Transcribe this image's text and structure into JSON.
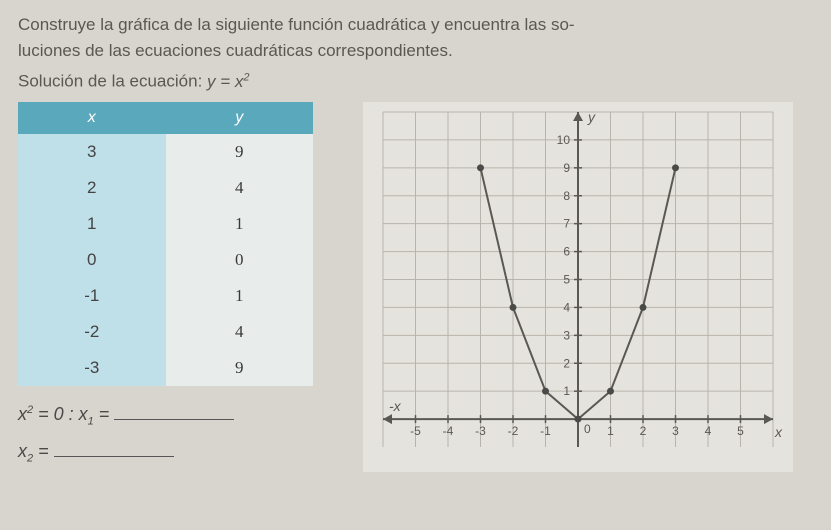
{
  "instruction_line1": "Construye la gráfica de la siguiente función cuadrática y encuentra las so-",
  "instruction_line2": "luciones de las ecuaciones cuadráticas correspondientes.",
  "equation_label": "Solución de la ecuación:",
  "equation_expr_base": "y = x",
  "equation_expr_exp": "2",
  "table": {
    "header_x": "x",
    "header_y": "y",
    "rows": [
      {
        "x": "3",
        "y": "9"
      },
      {
        "x": "2",
        "y": "4"
      },
      {
        "x": "1",
        "y": "1"
      },
      {
        "x": "0",
        "y": "0"
      },
      {
        "x": "-1",
        "y": "1"
      },
      {
        "x": "-2",
        "y": "4"
      },
      {
        "x": "-3",
        "y": "9"
      }
    ]
  },
  "fillins": {
    "line1_prefix_base": "x",
    "line1_prefix_exp": "2",
    "line1_mid": " = 0 : ",
    "line1_var": "x",
    "line1_sub": "1",
    "line1_eq": " = ",
    "line2_var": "x",
    "line2_sub": "2",
    "line2_eq": " = "
  },
  "chart": {
    "type": "line",
    "background_color": "#e5e3dd",
    "grid_color": "#b8b4ac",
    "axis_color": "#5a5852",
    "curve_color": "#5a5852",
    "point_color": "#4a4a48",
    "xlim": [
      -6,
      6
    ],
    "ylim": [
      -1,
      11
    ],
    "xtick_labels": [
      "-5",
      "-4",
      "-3",
      "-2",
      "-1",
      "1",
      "2",
      "3",
      "4",
      "5"
    ],
    "xtick_positions": [
      -5,
      -4,
      -3,
      -2,
      -1,
      1,
      2,
      3,
      4,
      5
    ],
    "ytick_labels": [
      "1",
      "2",
      "3",
      "4",
      "5",
      "6",
      "7",
      "8",
      "9",
      "10"
    ],
    "ytick_positions": [
      1,
      2,
      3,
      4,
      5,
      6,
      7,
      8,
      9,
      10
    ],
    "y_axis_label": "y",
    "x_axis_label": "x",
    "neg_x_label": "-x",
    "points": [
      {
        "x": -3,
        "y": 9
      },
      {
        "x": -2,
        "y": 4
      },
      {
        "x": -1,
        "y": 1
      },
      {
        "x": 0,
        "y": 0
      },
      {
        "x": 1,
        "y": 1
      },
      {
        "x": 2,
        "y": 4
      },
      {
        "x": 3,
        "y": 9
      }
    ],
    "label_fontsize": 12,
    "axis_fontsize": 14,
    "line_width": 2,
    "point_radius": 3.5
  }
}
